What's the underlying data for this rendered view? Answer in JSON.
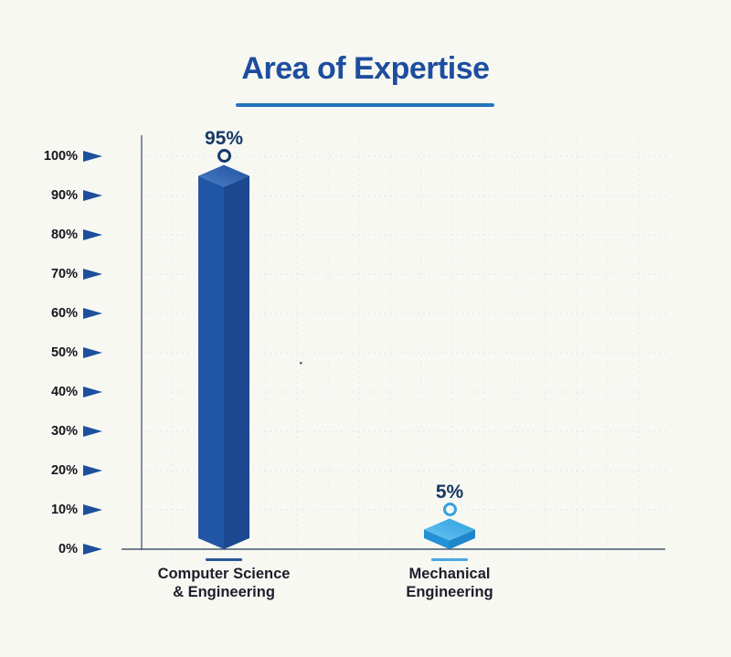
{
  "page": {
    "background": "#f8f8f3"
  },
  "title": {
    "text": "Area of Expertise",
    "color": "#1d4e9e",
    "underline_color": "#2373bd"
  },
  "colors": {
    "background": "#f8f8f3",
    "axis": "#68758f",
    "baseline": "#44596b",
    "grid": "#c9d2df",
    "tick_text": "#15151c",
    "tick_arrow": "#1d4f9c",
    "value_label": "#173864",
    "category_text": "#1d1d2b"
  },
  "chart_data": {
    "type": "bar",
    "title": "Area of Expertise",
    "categories": [
      "Computer Science & Engineering",
      "Mechanical Engineering"
    ],
    "category_lines": [
      "Computer Science\n& Engineering",
      "Mechanical\nEngineering"
    ],
    "values": [
      95,
      5
    ],
    "value_labels": [
      "95%",
      "5%"
    ],
    "unit": "%",
    "xlabel": "",
    "ylabel": "",
    "ylim": [
      0,
      100
    ],
    "y_ticks": [
      "100%",
      "90%",
      "80%",
      "70%",
      "60%",
      "50%",
      "40%",
      "30%",
      "20%",
      "10%",
      "0%"
    ],
    "grid": true,
    "legend": false,
    "bar_style": "3d-box",
    "bar_colors": [
      {
        "top_light": "#4a7fc5",
        "top_dark": "#20509f",
        "left": "#2156a7",
        "right": "#1b4890",
        "ring": "#153a6a",
        "underline": "#2b5799"
      },
      {
        "top_light": "#6cc4ef",
        "top_dark": "#2da0e0",
        "left": "#2391d6",
        "right": "#1f86cb",
        "ring": "#39a2e0",
        "underline": "#4aa8e0"
      }
    ]
  }
}
